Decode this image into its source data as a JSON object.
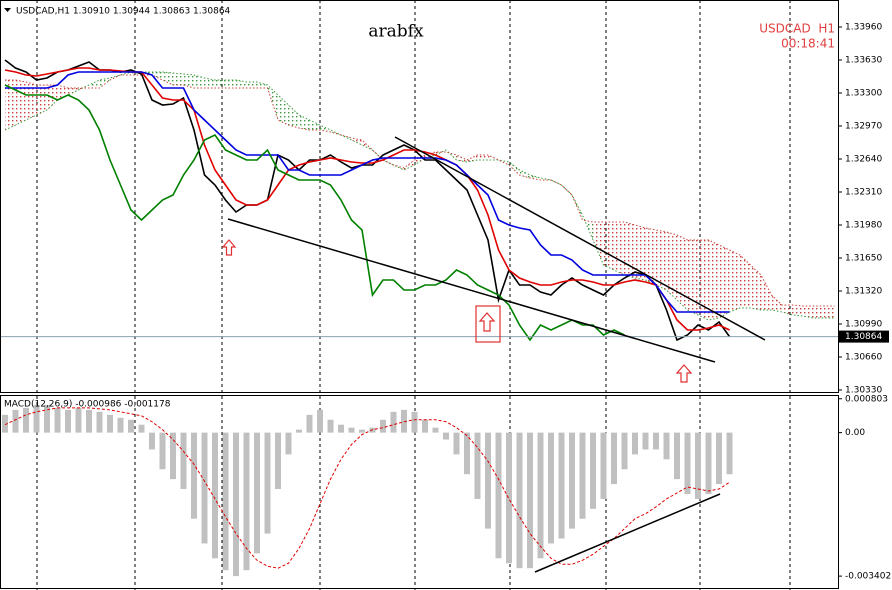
{
  "chart_data": [
    {
      "type": "line",
      "title": "arabfx",
      "header": "USDCAD,H1 1.30910 1.30944 1.30863 1.30864",
      "symbol_label": "USDCAD  H1",
      "timer": "00:18:41",
      "current_price": 1.30864,
      "ylim": [
        1.3031,
        1.3423
      ],
      "yticks": [
        {
          "value": 1.3396,
          "label": "1.33960"
        },
        {
          "value": 1.3363,
          "label": "1.33630"
        },
        {
          "value": 1.333,
          "label": "1.33300"
        },
        {
          "value": 1.3297,
          "label": "1.32970"
        },
        {
          "value": 1.3264,
          "label": "1.32640"
        },
        {
          "value": 1.3231,
          "label": "1.32310"
        },
        {
          "value": 1.3198,
          "label": "1.31980"
        },
        {
          "value": 1.3165,
          "label": "1.31650"
        },
        {
          "value": 1.3132,
          "label": "1.31320"
        },
        {
          "value": 1.3099,
          "label": "1.30990"
        },
        {
          "value": 1.3066,
          "label": "1.30660"
        },
        {
          "value": 1.3033,
          "label": "1.30330"
        }
      ],
      "series": [
        {
          "color": "#000000",
          "style": "line",
          "values": [
            1.3363,
            1.3355,
            1.3351,
            1.3343,
            1.3345,
            1.3351,
            1.3353,
            1.3357,
            1.3361,
            1.3353,
            1.3353,
            1.3351,
            1.3353,
            1.3349,
            1.3323,
            1.3318,
            1.3319,
            1.3325,
            1.3293,
            1.3248,
            1.3238,
            1.3223,
            1.3211,
            1.3218,
            1.3218,
            1.3223,
            1.3268,
            1.3263,
            1.3253,
            1.3263,
            1.3263,
            1.3268,
            1.3261,
            1.3255,
            1.3258,
            1.3258,
            1.3268,
            1.3273,
            1.3278,
            1.3273,
            1.3263,
            1.3263,
            1.3253,
            1.3243,
            1.3233,
            1.3208,
            1.3183,
            1.3123,
            1.3153,
            1.3138,
            1.3138,
            1.3131,
            1.3128,
            1.3138,
            1.3145,
            1.3138,
            1.3133,
            1.3128,
            1.3138,
            1.3145,
            1.3151,
            1.3148,
            1.3138,
            1.3113,
            1.3083,
            1.3088,
            1.3098,
            1.3093,
            1.3101,
            1.30864,
            null,
            null,
            null,
            null,
            null,
            null,
            null,
            null,
            null,
            null
          ]
        },
        {
          "color": "#e00000",
          "style": "line",
          "values": [
            1.3353,
            1.3351,
            1.3348,
            1.3347,
            1.3349,
            1.3351,
            1.3353,
            1.3355,
            1.3355,
            1.3353,
            1.3353,
            1.3352,
            1.3351,
            1.3351,
            1.3338,
            1.3325,
            1.3323,
            1.3323,
            1.3313,
            1.3278,
            1.3253,
            1.3238,
            1.3223,
            1.3218,
            1.3218,
            1.3223,
            1.3238,
            1.3253,
            1.3258,
            1.3261,
            1.3263,
            1.3265,
            1.3263,
            1.3261,
            1.326,
            1.326,
            1.3263,
            1.3268,
            1.3273,
            1.3273,
            1.3271,
            1.3268,
            1.3263,
            1.3258,
            1.3248,
            1.3233,
            1.3208,
            1.3173,
            1.3153,
            1.3145,
            1.3141,
            1.3138,
            1.3138,
            1.3141,
            1.3143,
            1.3143,
            1.3141,
            1.3138,
            1.3138,
            1.3141,
            1.3143,
            1.3141,
            1.3138,
            1.3123,
            1.3103,
            1.3093,
            1.3093,
            1.3095,
            1.3098,
            1.3093,
            null,
            null,
            null,
            null,
            null,
            null,
            null,
            null,
            null,
            null
          ]
        },
        {
          "color": "#0000e0",
          "style": "line",
          "values": [
            1.3335,
            1.3335,
            1.3335,
            1.3335,
            1.3335,
            1.3338,
            1.3348,
            1.3351,
            1.3351,
            1.3351,
            1.3351,
            1.3351,
            1.3351,
            1.3351,
            1.3348,
            1.3335,
            1.3335,
            1.3335,
            1.3313,
            1.3303,
            1.3293,
            1.3283,
            1.3273,
            1.3268,
            1.3268,
            1.3268,
            1.3268,
            1.3253,
            1.3253,
            1.3248,
            1.3248,
            1.3248,
            1.3248,
            1.3253,
            1.3258,
            1.3263,
            1.3265,
            1.3265,
            1.3265,
            1.3265,
            1.3265,
            1.3265,
            1.3263,
            1.3258,
            1.3248,
            1.3238,
            1.3228,
            1.3203,
            1.3198,
            1.3195,
            1.3193,
            1.3178,
            1.3168,
            1.3168,
            1.3163,
            1.3153,
            1.3148,
            1.3148,
            1.3148,
            1.3148,
            1.3148,
            1.3148,
            1.3138,
            1.3123,
            1.3111,
            1.3111,
            1.3111,
            1.3111,
            1.3111,
            1.3111,
            null,
            null,
            null,
            null,
            null,
            null,
            null,
            null,
            null,
            null
          ]
        },
        {
          "color": "#008000",
          "style": "line",
          "values": [
            1.3338,
            1.3333,
            1.3328,
            1.3328,
            1.3328,
            1.3323,
            1.3328,
            1.3323,
            1.3313,
            1.3293,
            1.3263,
            1.3238,
            1.3213,
            1.3203,
            1.3213,
            1.3223,
            1.3228,
            1.3248,
            1.3263,
            1.3283,
            1.3288,
            1.3273,
            1.3268,
            1.3263,
            1.3263,
            1.3273,
            1.3253,
            1.3248,
            1.3243,
            1.3243,
            1.3243,
            1.3238,
            1.3223,
            1.3203,
            1.3193,
            1.3128,
            1.3143,
            1.3143,
            1.3133,
            1.3133,
            1.3138,
            1.3138,
            1.3143,
            1.3153,
            1.3148,
            1.3138,
            1.3133,
            1.3128,
            1.3118,
            1.3098,
            1.3083,
            1.3098,
            1.3093,
            1.3098,
            1.3103,
            1.3098,
            1.3098,
            1.3088,
            1.3093,
            1.3088,
            null,
            null,
            null,
            null,
            null,
            null,
            null,
            null,
            null,
            null
          ]
        },
        {
          "color": "#3a9a3a",
          "style": "cloud",
          "values": [
            1.3293,
            1.3298,
            1.3303,
            1.3308,
            1.3313,
            1.3323,
            1.3328,
            1.3333,
            1.3338,
            1.3343,
            1.3345,
            1.3348,
            1.3351,
            1.3351,
            1.3351,
            1.3351,
            1.335,
            1.3349,
            1.3348,
            1.3345,
            1.3343,
            1.3343,
            1.3343,
            1.3341,
            1.3341,
            1.3338,
            1.3328,
            1.3318,
            1.3308,
            1.3303,
            1.3298,
            1.3293,
            1.3288,
            1.3283,
            1.3278,
            1.3273,
            1.3263,
            1.3258,
            1.3253,
            1.3258,
            1.3265,
            1.3268,
            1.3273,
            1.3263,
            1.3261,
            1.3263,
            1.3263,
            1.3263,
            1.3261,
            1.3253,
            1.3248,
            1.3245,
            1.3243,
            1.3238,
            1.3228,
            1.3208,
            1.3183,
            1.3158,
            1.3153,
            1.3148,
            1.3145,
            1.3143,
            1.3138,
            1.3133,
            1.3123,
            1.3113,
            1.3108,
            1.3103,
            1.3105,
            1.3111,
            1.3115,
            1.3115,
            1.3113,
            1.3113,
            1.3111,
            1.3108,
            1.3107,
            1.3105,
            1.3105,
            1.3105
          ]
        },
        {
          "color": "#c8403a",
          "style": "cloud",
          "values": [
            1.3343,
            1.3343,
            1.3341,
            1.3338,
            1.3338,
            1.3338,
            1.3335,
            1.3335,
            1.3335,
            1.3335,
            1.3343,
            1.3348,
            1.3348,
            1.3348,
            1.3348,
            1.3343,
            1.3338,
            1.3338,
            1.3335,
            1.3335,
            1.3335,
            1.3335,
            1.3335,
            1.3335,
            1.3335,
            1.3335,
            1.3303,
            1.3298,
            1.3295,
            1.3293,
            1.3293,
            1.3291,
            1.3288,
            1.3285,
            1.3283,
            1.3273,
            1.3263,
            1.3258,
            1.3255,
            1.3263,
            1.3268,
            1.3271,
            1.3271,
            1.3268,
            1.3263,
            1.3268,
            1.3268,
            1.3263,
            1.3258,
            1.3248,
            1.3245,
            1.3243,
            1.3243,
            1.3238,
            1.3228,
            1.3203,
            1.3201,
            1.3201,
            1.3201,
            1.3201,
            1.3198,
            1.3195,
            1.3193,
            1.3191,
            1.3188,
            1.3183,
            1.3183,
            1.3183,
            1.3178,
            1.3173,
            1.3168,
            1.3158,
            1.3148,
            1.3128,
            1.3118,
            1.3118,
            1.3117,
            1.3117,
            1.3117,
            1.3117
          ]
        }
      ]
    },
    {
      "type": "bar",
      "label": "MACD(12,26,9) -0.000986 -0.001178",
      "ylim": [
        -0.003684,
        0.000892
      ],
      "yticks": [
        0.000803,
        {
          "value": 0,
          "label": "0.00"
        },
        -0.003402
      ],
      "series": [
        {
          "color": "#c0c0c0",
          "style": "bar",
          "values": [
            0.000422,
            0.00054,
            0.000587,
            0.000657,
            0.000657,
            0.000587,
            0.00054,
            0.000587,
            0.00054,
            0.000493,
            0.000422,
            0.000352,
            0.000305,
            0.000188,
            -0.000399,
            -0.000868,
            -0.001103,
            -0.001337,
            -0.002041,
            -0.002628,
            -0.00298,
            -0.003261,
            -0.003402,
            -0.003261,
            -0.002862,
            -0.002393,
            -0.001337,
            -0.000516,
            7e-05,
            0.000422,
            0.00054,
            0.000305,
            0.000188,
            0.000117,
            7e-05,
            0.000117,
            0.000305,
            0.000493,
            0.00054,
            0.000493,
            0.000305,
            0.000117,
            -0.000164,
            -0.000516,
            -0.000985,
            -0.001572,
            -0.002276,
            -0.00298,
            -0.003097,
            -0.003214,
            -0.003214,
            -0.00298,
            -0.002628,
            -0.002511,
            -0.002276,
            -0.002041,
            -0.001807,
            -0.001572,
            -0.00122,
            -0.000868,
            -0.000516,
            -0.000399,
            -0.000399,
            -0.000633,
            -0.001103,
            -0.001455,
            -0.001572,
            -0.001455,
            -0.00122,
            -0.000986
          ]
        },
        {
          "color": "#e00000",
          "style": "dashed",
          "values": [
            0.000188,
            0.000305,
            0.000422,
            0.000493,
            0.00054,
            0.000587,
            0.000587,
            0.000587,
            0.000587,
            0.000563,
            0.00054,
            0.000493,
            0.000446,
            0.000399,
            0.000258,
            7e-05,
            -0.000164,
            -0.000446,
            -0.000751,
            -0.00115,
            -0.001572,
            -0.001994,
            -0.002393,
            -0.002745,
            -0.003027,
            -0.003168,
            -0.003214,
            -0.003097,
            -0.002745,
            -0.002276,
            -0.001689,
            -0.001103,
            -0.000633,
            -0.000282,
            -4.7e-05,
            7e-05,
            0.000117,
            0.000188,
            0.000258,
            0.000305,
            0.000305,
            0.000305,
            0.000258,
            0.000117,
            -7e-05,
            -0.000352,
            -0.00068,
            -0.001103,
            -0.001572,
            -0.001994,
            -0.002393,
            -0.002698,
            -0.00298,
            -0.003121,
            -0.003121,
            -0.003027,
            -0.002886,
            -0.002698,
            -0.002511,
            -0.002276,
            -0.002041,
            -0.001924,
            -0.00176,
            -0.001572,
            -0.001431,
            -0.00129,
            -0.001337,
            -0.001384,
            -0.001337,
            -0.001178
          ]
        }
      ]
    }
  ]
}
